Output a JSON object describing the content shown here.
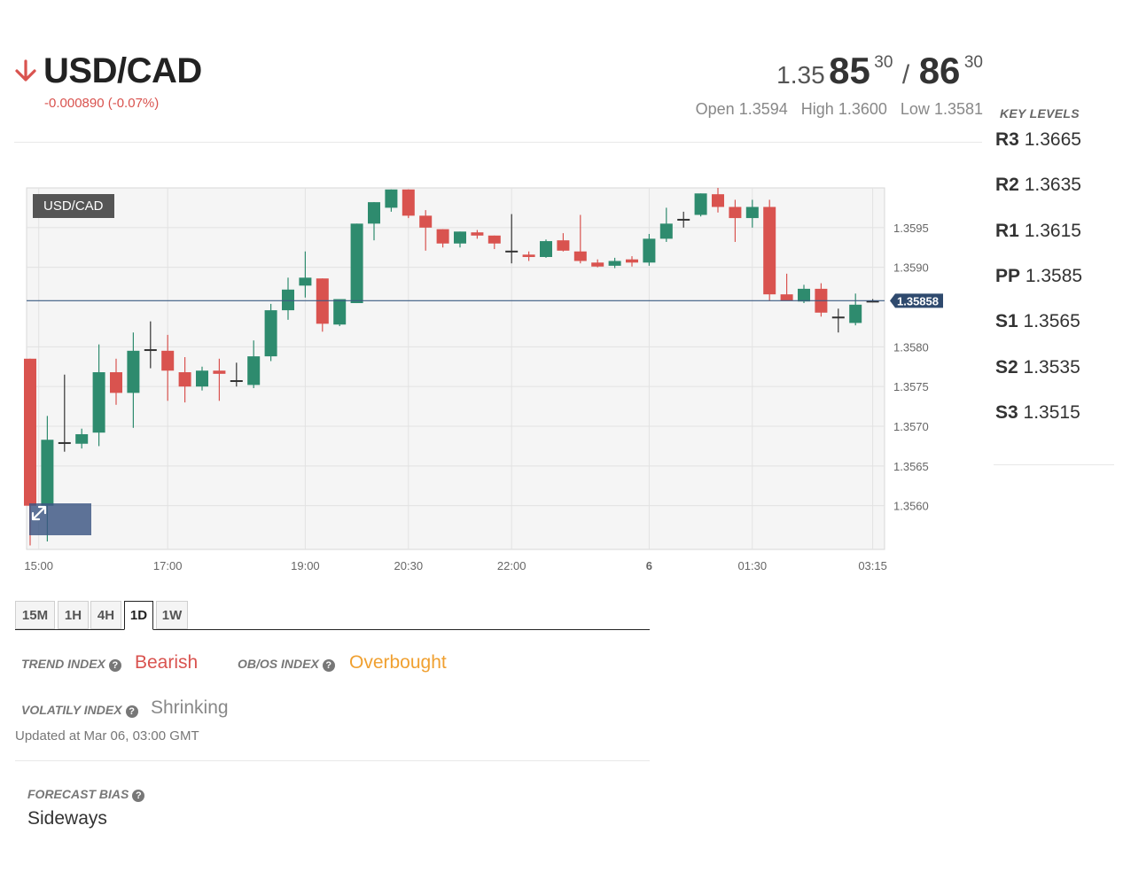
{
  "header": {
    "pair": "USD/CAD",
    "direction_icon": "down-arrow-icon",
    "change": "-0.000890 (-0.07%)",
    "bid": {
      "prefix": "1.35",
      "big": "85",
      "sup": "30"
    },
    "separator": "/",
    "ask": {
      "big": "86",
      "sup": "30"
    },
    "open_label": "Open",
    "open_value": "1.3594",
    "high_label": "High",
    "high_value": "1.3600",
    "low_label": "Low",
    "low_value": "1.3581"
  },
  "key_levels": {
    "title": "KEY LEVELS",
    "items": [
      {
        "label": "R3",
        "value": "1.3665"
      },
      {
        "label": "R2",
        "value": "1.3635"
      },
      {
        "label": "R1",
        "value": "1.3615"
      },
      {
        "label": "PP",
        "value": "1.3585"
      },
      {
        "label": "S1",
        "value": "1.3565"
      },
      {
        "label": "S2",
        "value": "1.3535"
      },
      {
        "label": "S3",
        "value": "1.3515"
      }
    ]
  },
  "chart_data": {
    "type": "candlestick",
    "symbol_tag": "USD/CAD",
    "current_price": 1.35858,
    "current_price_label": "1.35858",
    "ylim": [
      1.35545,
      1.36
    ],
    "y_ticks": [
      1.3595,
      1.359,
      1.358,
      1.3575,
      1.357,
      1.3565,
      1.356
    ],
    "y_tick_labels": [
      "1.3595",
      "1.3590",
      "1.3580",
      "1.3575",
      "1.3570",
      "1.3565",
      "1.3560"
    ],
    "x_ticks": [
      {
        "label": "15:00",
        "index": 0.5,
        "bold": false
      },
      {
        "label": "17:00",
        "index": 8,
        "bold": false
      },
      {
        "label": "19:00",
        "index": 16,
        "bold": false
      },
      {
        "label": "20:30",
        "index": 22,
        "bold": false
      },
      {
        "label": "22:00",
        "index": 28,
        "bold": false
      },
      {
        "label": "6",
        "index": 36,
        "bold": true
      },
      {
        "label": "01:30",
        "index": 42,
        "bold": false
      },
      {
        "label": "03:15",
        "index": 49,
        "bold": false
      }
    ],
    "colors": {
      "up": "#2e8b6e",
      "down": "#d9534f",
      "doji": "#333333",
      "price_line": "#3b5a82",
      "grid": "#e2e2e2",
      "plot_bg": "#f5f5f5"
    },
    "candles": [
      {
        "o": 1.35785,
        "h": 1.35785,
        "l": 1.3555,
        "c": 1.356
      },
      {
        "o": 1.356,
        "h": 1.35713,
        "l": 1.35555,
        "c": 1.35683
      },
      {
        "o": 1.3568,
        "h": 1.35765,
        "l": 1.35668,
        "c": 1.3568
      },
      {
        "o": 1.35678,
        "h": 1.35697,
        "l": 1.35672,
        "c": 1.3569
      },
      {
        "o": 1.35692,
        "h": 1.35803,
        "l": 1.35675,
        "c": 1.35768
      },
      {
        "o": 1.35768,
        "h": 1.35785,
        "l": 1.35727,
        "c": 1.35742
      },
      {
        "o": 1.35742,
        "h": 1.35818,
        "l": 1.35698,
        "c": 1.35795
      },
      {
        "o": 1.35797,
        "h": 1.35832,
        "l": 1.35773,
        "c": 1.35797
      },
      {
        "o": 1.35795,
        "h": 1.35815,
        "l": 1.35732,
        "c": 1.3577
      },
      {
        "o": 1.35768,
        "h": 1.35787,
        "l": 1.3573,
        "c": 1.3575
      },
      {
        "o": 1.3575,
        "h": 1.35775,
        "l": 1.35745,
        "c": 1.3577
      },
      {
        "o": 1.3577,
        "h": 1.35785,
        "l": 1.35732,
        "c": 1.35766
      },
      {
        "o": 1.35758,
        "h": 1.3578,
        "l": 1.3575,
        "c": 1.35758
      },
      {
        "o": 1.35752,
        "h": 1.35808,
        "l": 1.35748,
        "c": 1.35788
      },
      {
        "o": 1.35788,
        "h": 1.35854,
        "l": 1.35782,
        "c": 1.35846
      },
      {
        "o": 1.35846,
        "h": 1.35887,
        "l": 1.35834,
        "c": 1.35872
      },
      {
        "o": 1.35877,
        "h": 1.3592,
        "l": 1.35862,
        "c": 1.35887
      },
      {
        "o": 1.35886,
        "h": 1.35886,
        "l": 1.35819,
        "c": 1.35829
      },
      {
        "o": 1.35828,
        "h": 1.35859,
        "l": 1.35826,
        "c": 1.3586
      },
      {
        "o": 1.35855,
        "h": 1.35955,
        "l": 1.35855,
        "c": 1.35955
      },
      {
        "o": 1.35955,
        "h": 1.35982,
        "l": 1.35934,
        "c": 1.35982
      },
      {
        "o": 1.35975,
        "h": 1.35998,
        "l": 1.3597,
        "c": 1.35998
      },
      {
        "o": 1.35998,
        "h": 1.35998,
        "l": 1.35962,
        "c": 1.35965
      },
      {
        "o": 1.35965,
        "h": 1.35972,
        "l": 1.35921,
        "c": 1.3595
      },
      {
        "o": 1.35948,
        "h": 1.35948,
        "l": 1.35925,
        "c": 1.3593
      },
      {
        "o": 1.3593,
        "h": 1.35945,
        "l": 1.35925,
        "c": 1.35945
      },
      {
        "o": 1.35944,
        "h": 1.35947,
        "l": 1.35936,
        "c": 1.3594
      },
      {
        "o": 1.3594,
        "h": 1.3594,
        "l": 1.35923,
        "c": 1.3593
      },
      {
        "o": 1.35921,
        "h": 1.35967,
        "l": 1.35905,
        "c": 1.35921
      },
      {
        "o": 1.35916,
        "h": 1.3592,
        "l": 1.35908,
        "c": 1.35913
      },
      {
        "o": 1.35913,
        "h": 1.35935,
        "l": 1.35912,
        "c": 1.35933
      },
      {
        "o": 1.35934,
        "h": 1.35943,
        "l": 1.3592,
        "c": 1.35921
      },
      {
        "o": 1.3592,
        "h": 1.35966,
        "l": 1.35905,
        "c": 1.35908
      },
      {
        "o": 1.35906,
        "h": 1.3591,
        "l": 1.359,
        "c": 1.35901
      },
      {
        "o": 1.35902,
        "h": 1.35912,
        "l": 1.35899,
        "c": 1.35908
      },
      {
        "o": 1.3591,
        "h": 1.35914,
        "l": 1.35901,
        "c": 1.35906
      },
      {
        "o": 1.35906,
        "h": 1.35942,
        "l": 1.35902,
        "c": 1.35936
      },
      {
        "o": 1.35936,
        "h": 1.35975,
        "l": 1.35932,
        "c": 1.35955
      },
      {
        "o": 1.35961,
        "h": 1.3597,
        "l": 1.3595,
        "c": 1.35961
      },
      {
        "o": 1.35966,
        "h": 1.35993,
        "l": 1.35964,
        "c": 1.35993
      },
      {
        "o": 1.35992,
        "h": 1.36,
        "l": 1.35969,
        "c": 1.35976
      },
      {
        "o": 1.35976,
        "h": 1.35985,
        "l": 1.35932,
        "c": 1.35962
      },
      {
        "o": 1.35962,
        "h": 1.35985,
        "l": 1.3595,
        "c": 1.35976
      },
      {
        "o": 1.35976,
        "h": 1.35985,
        "l": 1.35858,
        "c": 1.35866
      },
      {
        "o": 1.35866,
        "h": 1.35892,
        "l": 1.3586,
        "c": 1.35858
      },
      {
        "o": 1.35857,
        "h": 1.35878,
        "l": 1.35855,
        "c": 1.35873
      },
      {
        "o": 1.35873,
        "h": 1.3588,
        "l": 1.35838,
        "c": 1.35843
      },
      {
        "o": 1.35838,
        "h": 1.35848,
        "l": 1.35818,
        "c": 1.35838
      },
      {
        "o": 1.3583,
        "h": 1.35867,
        "l": 1.35827,
        "c": 1.35853
      },
      {
        "o": 1.35858,
        "h": 1.3586,
        "l": 1.35856,
        "c": 1.35858
      }
    ]
  },
  "tabs": [
    {
      "label": "15M",
      "active": false
    },
    {
      "label": "1H",
      "active": false
    },
    {
      "label": "4H",
      "active": false
    },
    {
      "label": "1D",
      "active": true
    },
    {
      "label": "1W",
      "active": false
    }
  ],
  "indicators": {
    "trend_label": "TREND INDEX",
    "trend_value": "Bearish",
    "trend_color": "#d9534f",
    "obos_label": "OB/OS INDEX",
    "obos_value": "Overbought",
    "obos_color": "#f0a030",
    "volatility_label": "VOLATILY INDEX",
    "volatility_value": "Shrinking",
    "volatility_color": "#888888",
    "help_icon": "question-circle-icon",
    "updated": "Updated at Mar 06, 03:00 GMT"
  },
  "forecast": {
    "label": "FORECAST BIAS",
    "value": "Sideways"
  },
  "expand_icon": "expand-arrows-icon"
}
